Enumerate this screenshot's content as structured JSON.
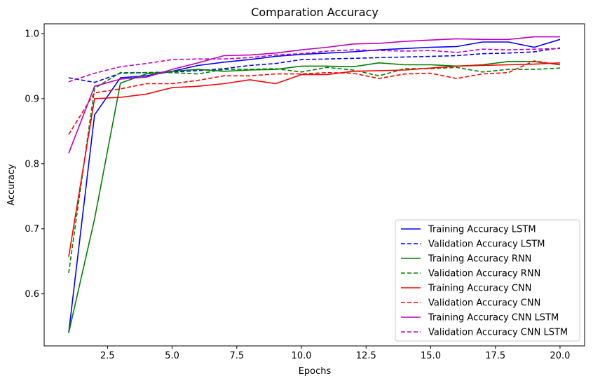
{
  "chart_data": {
    "type": "line",
    "title": "Comparation Accuracy",
    "xlabel": "Epochs",
    "ylabel": "Accuracy",
    "xlim": [
      0.05,
      20.95
    ],
    "ylim": [
      0.52,
      1.015
    ],
    "x_ticks": [
      2.5,
      5.0,
      7.5,
      10.0,
      12.5,
      15.0,
      17.5,
      20.0
    ],
    "x_tick_labels": [
      "2.5",
      "5.0",
      "7.5",
      "10.0",
      "12.5",
      "15.0",
      "17.5",
      "20.0"
    ],
    "y_ticks": [
      0.6,
      0.7,
      0.8,
      0.9,
      1.0
    ],
    "y_tick_labels": [
      "0.6",
      "0.7",
      "0.8",
      "0.9",
      "1.0"
    ],
    "grid": false,
    "legend_position": "lower-right",
    "x": [
      1,
      2,
      3,
      4,
      5,
      6,
      7,
      8,
      9,
      10,
      11,
      12,
      13,
      14,
      15,
      16,
      17,
      18,
      19,
      20
    ],
    "series": [
      {
        "name": "Training Accuracy LSTM",
        "color": "#0000ff",
        "dash": "solid",
        "values": [
          0.54,
          0.875,
          0.932,
          0.935,
          0.942,
          0.951,
          0.956,
          0.96,
          0.965,
          0.968,
          0.97,
          0.972,
          0.975,
          0.977,
          0.979,
          0.98,
          0.987,
          0.987,
          0.979,
          0.991
        ]
      },
      {
        "name": "Validation Accuracy LSTM",
        "color": "#0000ff",
        "dash": "dashed",
        "values": [
          0.932,
          0.925,
          0.939,
          0.94,
          0.941,
          0.943,
          0.946,
          0.951,
          0.954,
          0.96,
          0.961,
          0.962,
          0.963,
          0.964,
          0.965,
          0.966,
          0.969,
          0.97,
          0.972,
          0.978
        ]
      },
      {
        "name": "Training Accuracy RNN",
        "color": "#008000",
        "dash": "solid",
        "values": [
          0.54,
          0.715,
          0.924,
          0.938,
          0.942,
          0.945,
          0.942,
          0.944,
          0.945,
          0.95,
          0.95,
          0.949,
          0.955,
          0.952,
          0.952,
          0.95,
          0.952,
          0.957,
          0.957,
          0.952
        ]
      },
      {
        "name": "Validation Accuracy RNN",
        "color": "#008000",
        "dash": "dashed",
        "values": [
          0.632,
          0.916,
          0.94,
          0.94,
          0.94,
          0.938,
          0.945,
          0.945,
          0.946,
          0.941,
          0.948,
          0.944,
          0.935,
          0.946,
          0.946,
          0.948,
          0.941,
          0.945,
          0.945,
          0.947
        ]
      },
      {
        "name": "Training Accuracy CNN",
        "color": "#ff0000",
        "dash": "solid",
        "values": [
          0.657,
          0.9,
          0.902,
          0.907,
          0.917,
          0.919,
          0.923,
          0.929,
          0.923,
          0.937,
          0.937,
          0.942,
          0.943,
          0.944,
          0.947,
          0.95,
          0.951,
          0.952,
          0.953,
          0.955
        ]
      },
      {
        "name": "Validation Accuracy CNN",
        "color": "#ff0000",
        "dash": "dashed",
        "values": [
          0.845,
          0.909,
          0.915,
          0.923,
          0.923,
          0.928,
          0.935,
          0.935,
          0.938,
          0.938,
          0.94,
          0.939,
          0.931,
          0.938,
          0.939,
          0.931,
          0.938,
          0.94,
          0.958,
          0.952
        ]
      },
      {
        "name": "Training Accuracy CNN LSTM",
        "color": "#bf00bf",
        "dash": "solid",
        "values": [
          0.816,
          0.919,
          0.93,
          0.933,
          0.945,
          0.955,
          0.966,
          0.967,
          0.97,
          0.975,
          0.979,
          0.984,
          0.985,
          0.988,
          0.99,
          0.992,
          0.991,
          0.991,
          0.995,
          0.995
        ]
      },
      {
        "name": "Validation Accuracy CNN LSTM",
        "color": "#bf00bf",
        "dash": "dashed",
        "values": [
          0.926,
          0.939,
          0.949,
          0.954,
          0.96,
          0.961,
          0.961,
          0.963,
          0.967,
          0.969,
          0.973,
          0.975,
          0.974,
          0.973,
          0.974,
          0.971,
          0.976,
          0.975,
          0.976,
          0.977
        ]
      }
    ]
  }
}
